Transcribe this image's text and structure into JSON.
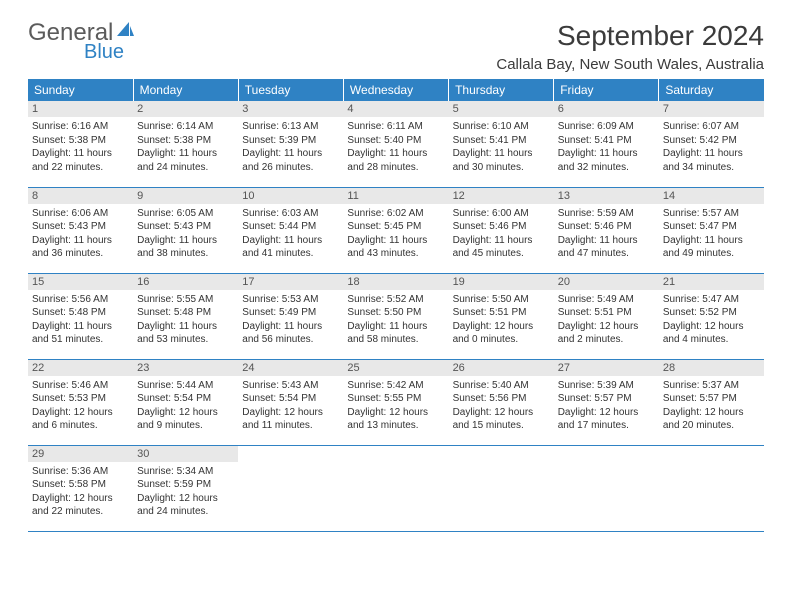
{
  "logo": {
    "text1": "General",
    "text2": "Blue"
  },
  "title": "September 2024",
  "location": "Callala Bay, New South Wales, Australia",
  "colors": {
    "header_bg": "#2f82c4",
    "header_text": "#ffffff",
    "daynum_bg": "#e8e8e8",
    "daynum_text": "#555555",
    "cell_text": "#333333",
    "border": "#2f82c4",
    "logo_gray": "#5b5b5b",
    "logo_blue": "#2f82c4"
  },
  "weekdays": [
    "Sunday",
    "Monday",
    "Tuesday",
    "Wednesday",
    "Thursday",
    "Friday",
    "Saturday"
  ],
  "weeks": [
    [
      {
        "n": "1",
        "sr": "Sunrise: 6:16 AM",
        "ss": "Sunset: 5:38 PM",
        "d1": "Daylight: 11 hours",
        "d2": "and 22 minutes."
      },
      {
        "n": "2",
        "sr": "Sunrise: 6:14 AM",
        "ss": "Sunset: 5:38 PM",
        "d1": "Daylight: 11 hours",
        "d2": "and 24 minutes."
      },
      {
        "n": "3",
        "sr": "Sunrise: 6:13 AM",
        "ss": "Sunset: 5:39 PM",
        "d1": "Daylight: 11 hours",
        "d2": "and 26 minutes."
      },
      {
        "n": "4",
        "sr": "Sunrise: 6:11 AM",
        "ss": "Sunset: 5:40 PM",
        "d1": "Daylight: 11 hours",
        "d2": "and 28 minutes."
      },
      {
        "n": "5",
        "sr": "Sunrise: 6:10 AM",
        "ss": "Sunset: 5:41 PM",
        "d1": "Daylight: 11 hours",
        "d2": "and 30 minutes."
      },
      {
        "n": "6",
        "sr": "Sunrise: 6:09 AM",
        "ss": "Sunset: 5:41 PM",
        "d1": "Daylight: 11 hours",
        "d2": "and 32 minutes."
      },
      {
        "n": "7",
        "sr": "Sunrise: 6:07 AM",
        "ss": "Sunset: 5:42 PM",
        "d1": "Daylight: 11 hours",
        "d2": "and 34 minutes."
      }
    ],
    [
      {
        "n": "8",
        "sr": "Sunrise: 6:06 AM",
        "ss": "Sunset: 5:43 PM",
        "d1": "Daylight: 11 hours",
        "d2": "and 36 minutes."
      },
      {
        "n": "9",
        "sr": "Sunrise: 6:05 AM",
        "ss": "Sunset: 5:43 PM",
        "d1": "Daylight: 11 hours",
        "d2": "and 38 minutes."
      },
      {
        "n": "10",
        "sr": "Sunrise: 6:03 AM",
        "ss": "Sunset: 5:44 PM",
        "d1": "Daylight: 11 hours",
        "d2": "and 41 minutes."
      },
      {
        "n": "11",
        "sr": "Sunrise: 6:02 AM",
        "ss": "Sunset: 5:45 PM",
        "d1": "Daylight: 11 hours",
        "d2": "and 43 minutes."
      },
      {
        "n": "12",
        "sr": "Sunrise: 6:00 AM",
        "ss": "Sunset: 5:46 PM",
        "d1": "Daylight: 11 hours",
        "d2": "and 45 minutes."
      },
      {
        "n": "13",
        "sr": "Sunrise: 5:59 AM",
        "ss": "Sunset: 5:46 PM",
        "d1": "Daylight: 11 hours",
        "d2": "and 47 minutes."
      },
      {
        "n": "14",
        "sr": "Sunrise: 5:57 AM",
        "ss": "Sunset: 5:47 PM",
        "d1": "Daylight: 11 hours",
        "d2": "and 49 minutes."
      }
    ],
    [
      {
        "n": "15",
        "sr": "Sunrise: 5:56 AM",
        "ss": "Sunset: 5:48 PM",
        "d1": "Daylight: 11 hours",
        "d2": "and 51 minutes."
      },
      {
        "n": "16",
        "sr": "Sunrise: 5:55 AM",
        "ss": "Sunset: 5:48 PM",
        "d1": "Daylight: 11 hours",
        "d2": "and 53 minutes."
      },
      {
        "n": "17",
        "sr": "Sunrise: 5:53 AM",
        "ss": "Sunset: 5:49 PM",
        "d1": "Daylight: 11 hours",
        "d2": "and 56 minutes."
      },
      {
        "n": "18",
        "sr": "Sunrise: 5:52 AM",
        "ss": "Sunset: 5:50 PM",
        "d1": "Daylight: 11 hours",
        "d2": "and 58 minutes."
      },
      {
        "n": "19",
        "sr": "Sunrise: 5:50 AM",
        "ss": "Sunset: 5:51 PM",
        "d1": "Daylight: 12 hours",
        "d2": "and 0 minutes."
      },
      {
        "n": "20",
        "sr": "Sunrise: 5:49 AM",
        "ss": "Sunset: 5:51 PM",
        "d1": "Daylight: 12 hours",
        "d2": "and 2 minutes."
      },
      {
        "n": "21",
        "sr": "Sunrise: 5:47 AM",
        "ss": "Sunset: 5:52 PM",
        "d1": "Daylight: 12 hours",
        "d2": "and 4 minutes."
      }
    ],
    [
      {
        "n": "22",
        "sr": "Sunrise: 5:46 AM",
        "ss": "Sunset: 5:53 PM",
        "d1": "Daylight: 12 hours",
        "d2": "and 6 minutes."
      },
      {
        "n": "23",
        "sr": "Sunrise: 5:44 AM",
        "ss": "Sunset: 5:54 PM",
        "d1": "Daylight: 12 hours",
        "d2": "and 9 minutes."
      },
      {
        "n": "24",
        "sr": "Sunrise: 5:43 AM",
        "ss": "Sunset: 5:54 PM",
        "d1": "Daylight: 12 hours",
        "d2": "and 11 minutes."
      },
      {
        "n": "25",
        "sr": "Sunrise: 5:42 AM",
        "ss": "Sunset: 5:55 PM",
        "d1": "Daylight: 12 hours",
        "d2": "and 13 minutes."
      },
      {
        "n": "26",
        "sr": "Sunrise: 5:40 AM",
        "ss": "Sunset: 5:56 PM",
        "d1": "Daylight: 12 hours",
        "d2": "and 15 minutes."
      },
      {
        "n": "27",
        "sr": "Sunrise: 5:39 AM",
        "ss": "Sunset: 5:57 PM",
        "d1": "Daylight: 12 hours",
        "d2": "and 17 minutes."
      },
      {
        "n": "28",
        "sr": "Sunrise: 5:37 AM",
        "ss": "Sunset: 5:57 PM",
        "d1": "Daylight: 12 hours",
        "d2": "and 20 minutes."
      }
    ],
    [
      {
        "n": "29",
        "sr": "Sunrise: 5:36 AM",
        "ss": "Sunset: 5:58 PM",
        "d1": "Daylight: 12 hours",
        "d2": "and 22 minutes."
      },
      {
        "n": "30",
        "sr": "Sunrise: 5:34 AM",
        "ss": "Sunset: 5:59 PM",
        "d1": "Daylight: 12 hours",
        "d2": "and 24 minutes."
      },
      null,
      null,
      null,
      null,
      null
    ]
  ]
}
